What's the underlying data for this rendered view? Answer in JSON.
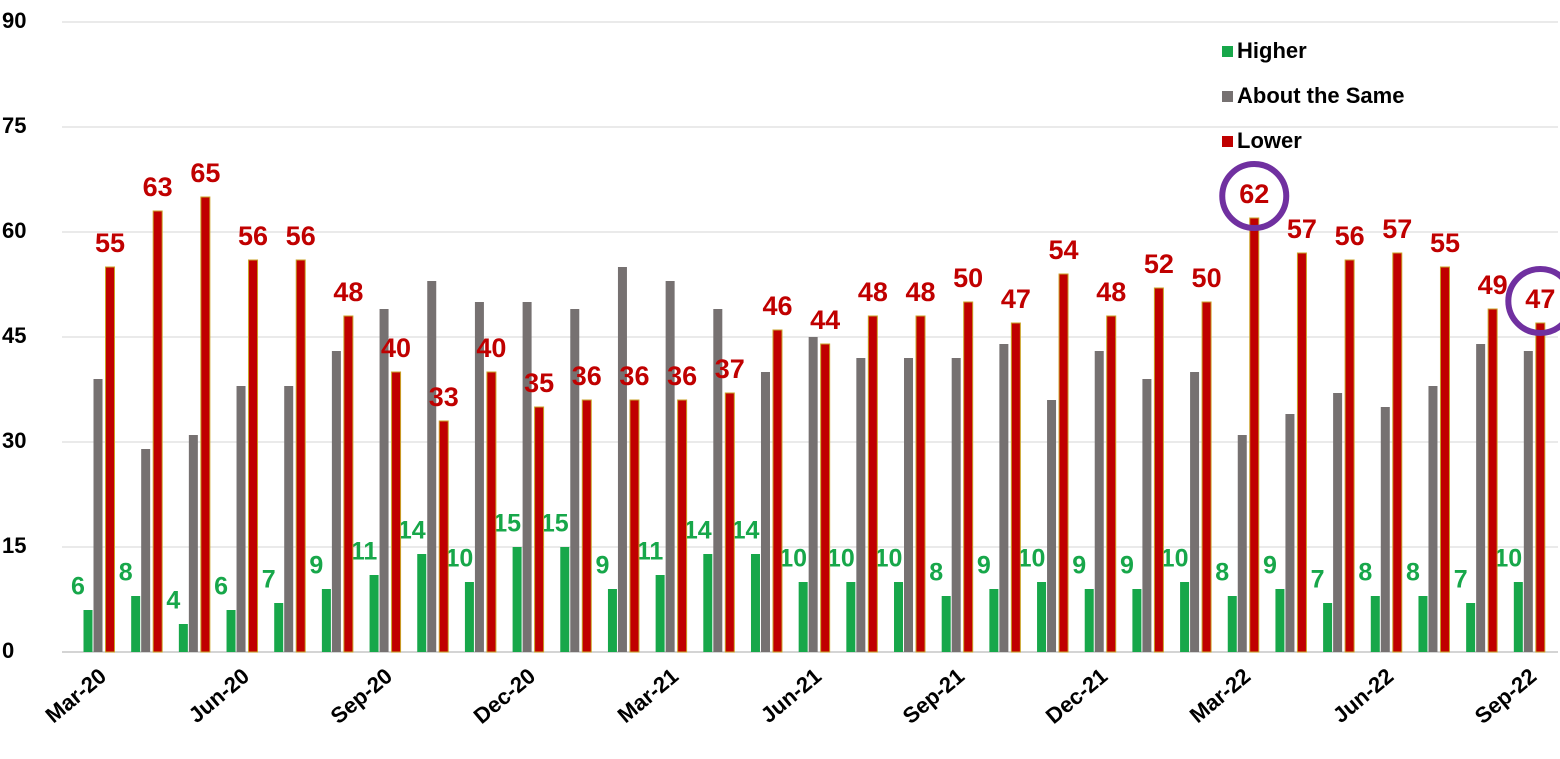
{
  "chart_data": {
    "type": "bar",
    "categories": [
      "Mar-20",
      null,
      null,
      "Jun-20",
      null,
      null,
      "Sep-20",
      null,
      null,
      "Dec-20",
      null,
      null,
      "Mar-21",
      null,
      null,
      "Jun-21",
      null,
      null,
      "Sep-21",
      null,
      null,
      "Dec-21",
      null,
      null,
      "Mar-22",
      null,
      null,
      "Jun-22",
      null,
      null,
      "Sep-22"
    ],
    "series": [
      {
        "name": "Higher",
        "color": "#17a74a",
        "values": [
          6,
          8,
          4,
          6,
          7,
          9,
          11,
          14,
          10,
          15,
          15,
          9,
          11,
          14,
          14,
          10,
          10,
          10,
          8,
          9,
          10,
          9,
          9,
          10,
          8,
          9,
          7,
          8,
          8,
          7,
          10
        ]
      },
      {
        "name": "About the Same",
        "color": "#767171",
        "values": [
          39,
          29,
          31,
          38,
          38,
          43,
          49,
          53,
          50,
          50,
          49,
          55,
          53,
          49,
          40,
          45,
          42,
          42,
          42,
          44,
          36,
          43,
          39,
          40,
          31,
          34,
          37,
          35,
          38,
          44,
          43
        ]
      },
      {
        "name": "Lower",
        "color": "#c00000",
        "values": [
          55,
          63,
          65,
          56,
          56,
          48,
          40,
          33,
          40,
          35,
          36,
          36,
          36,
          37,
          46,
          44,
          48,
          48,
          50,
          47,
          54,
          48,
          52,
          50,
          62,
          57,
          56,
          57,
          55,
          49,
          47
        ]
      }
    ],
    "ylim": [
      0,
      90
    ],
    "yticks": [
      0,
      15,
      30,
      45,
      60,
      75,
      90
    ],
    "grid": true,
    "legend": "top-right"
  }
}
